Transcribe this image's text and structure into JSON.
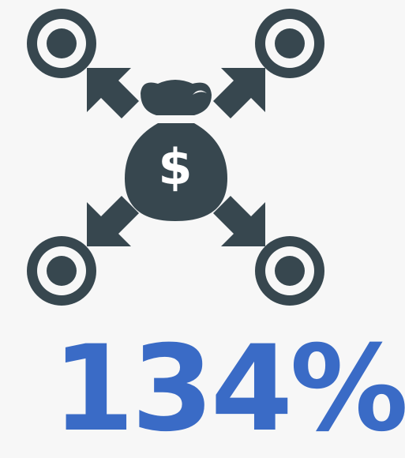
{
  "icon": {
    "symbol": "$"
  },
  "stat": {
    "value_text": "134%"
  }
}
